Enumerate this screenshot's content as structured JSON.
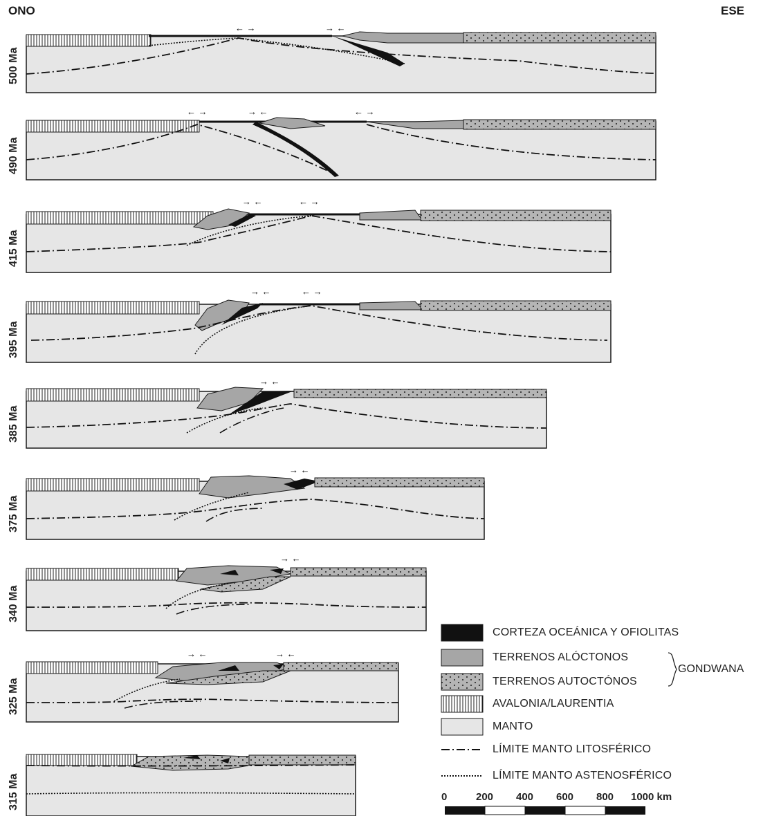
{
  "directions": {
    "west": "ONO",
    "east": "ESE"
  },
  "sections": [
    {
      "age": "500 Ma"
    },
    {
      "age": "490 Ma"
    },
    {
      "age": "415 Ma"
    },
    {
      "age": "395 Ma"
    },
    {
      "age": "385 Ma"
    },
    {
      "age": "375 Ma"
    },
    {
      "age": "340 Ma"
    },
    {
      "age": "325 Ma"
    },
    {
      "age": "315 Ma"
    }
  ],
  "legend": {
    "items": [
      {
        "label": "CORTEZA OCEÁNICA Y OFIOLITAS",
        "swatch": "oceanic"
      },
      {
        "label": "TERRENOS ALÓCTONOS",
        "swatch": "allochthonous"
      },
      {
        "label": "TERRENOS AUTOCTÓNOS",
        "swatch": "autochthonous"
      },
      {
        "label": "AVALONIA/LAURENTIA",
        "swatch": "avalonia"
      },
      {
        "label": "MANTO",
        "swatch": "mantle"
      },
      {
        "label": "LÍMITE MANTO LITOSFÉRICO",
        "swatch": "dash-dot-line"
      },
      {
        "label": "LÍMITE MANTO ASTENOSFÉRICO",
        "swatch": "dotted-line"
      }
    ],
    "group_label": "GONDWANA"
  },
  "scale": {
    "ticks": [
      "0",
      "200",
      "400",
      "600",
      "800",
      "1000 km"
    ]
  },
  "colors": {
    "mantle": "#e6e6e6",
    "allochthonous": "#a6a6a6",
    "autochthonous": "#b8b8b8",
    "oceanic": "#111111",
    "outline": "#1a1a1a"
  }
}
